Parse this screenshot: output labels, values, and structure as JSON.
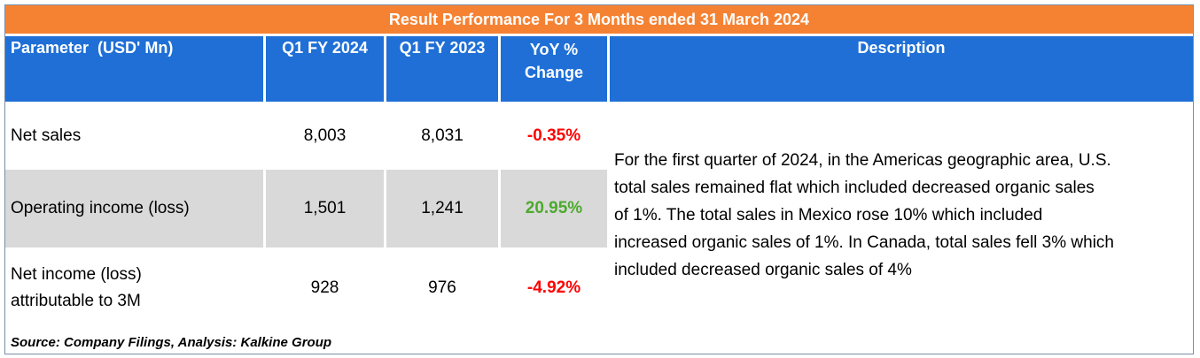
{
  "title": "Result Performance For 3 Months ended 31 March 2024",
  "headers": {
    "parameter": "Parameter  (USD' Mn)",
    "q1_2024": "Q1 FY 2024",
    "q1_2023": "Q1 FY 2023",
    "yoy_line1": "YoY %",
    "yoy_line2": "Change",
    "description": "Description"
  },
  "rows": [
    {
      "parameter": "Net sales",
      "q1_2024": "8,003",
      "q1_2023": "8,031",
      "yoy": "-0.35%"
    },
    {
      "parameter": "Operating income (loss)",
      "q1_2024": "1,501",
      "q1_2023": "1,241",
      "yoy": "20.95%"
    },
    {
      "parameter_line1": "Net income (loss)",
      "parameter_line2": "attributable to 3M",
      "q1_2024": "928",
      "q1_2023": "976",
      "yoy": "-4.92%"
    }
  ],
  "description_lines": [
    "For the first quarter of 2024, in the Americas geographic area, U.S.",
    "total sales remained flat which included decreased organic sales",
    "of 1%. The total sales in Mexico rose 10% which included",
    "increased organic sales of 1%. In Canada, total sales fell 3% which",
    "included decreased organic sales of 4%"
  ],
  "source": "Source: Company Filings, Analysis: Kalkine Group",
  "colors": {
    "title_bg": "#f58233",
    "header_bg": "#1f6fd6",
    "row_grey": "#d9d9d9",
    "negative": "#ff0000",
    "positive": "#4caa2c"
  }
}
